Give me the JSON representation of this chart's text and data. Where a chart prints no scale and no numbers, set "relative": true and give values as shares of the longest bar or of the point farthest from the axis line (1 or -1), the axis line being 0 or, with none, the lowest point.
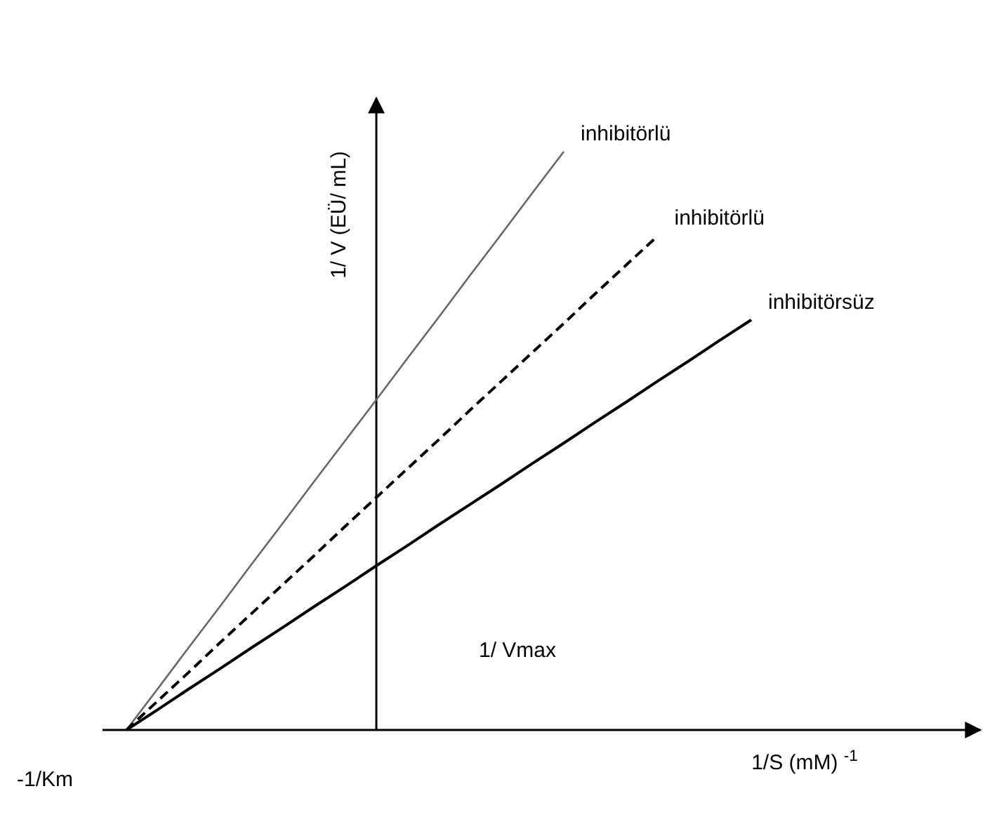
{
  "chart_data": {
    "type": "line",
    "relative": true,
    "xlabel": "1/S (mM) $^{-1}$",
    "ylabel": "1/ V (EÜ/ mL)",
    "marker": "none",
    "annotations": [
      "1/ Vmax",
      "-1/Km"
    ],
    "categories": [
      null,
      null,
      null,
      null,
      null,
      null,
      null,
      null,
      null,
      null,
      null,
      null,
      null,
      null,
      null,
      null,
      null,
      null,
      null,
      null,
      null
    ],
    "series": [
      {
        "name": "inhibitörlü",
        "color": "#666666",
        "line_style": "solid",
        "values": [
          0,
          0.071,
          0.143,
          0.214,
          0.286,
          0.357,
          0.429,
          0.5,
          0.571,
          0.643,
          0.714,
          0.786,
          0.857,
          0.929,
          1,
          null,
          null,
          null,
          null,
          null,
          null
        ]
      },
      {
        "name": "inhibitörlü",
        "color": "#000000",
        "line_style": "dashed",
        "values": [
          0,
          0.05,
          0.1,
          0.151,
          0.201,
          0.251,
          0.301,
          0.352,
          0.402,
          0.452,
          0.502,
          0.553,
          0.603,
          0.653,
          0.703,
          0.754,
          0.804,
          0.854,
          null,
          null,
          null
        ]
      },
      {
        "name": "inhibitörsüz",
        "color": "#000000",
        "line_style": "solid",
        "values": [
          0,
          0.035,
          0.071,
          0.106,
          0.142,
          0.177,
          0.213,
          0.248,
          0.284,
          0.319,
          0.355,
          0.39,
          0.425,
          0.461,
          0.496,
          0.532,
          0.567,
          0.603,
          0.638,
          0.674,
          0.709
        ]
      }
    ]
  }
}
